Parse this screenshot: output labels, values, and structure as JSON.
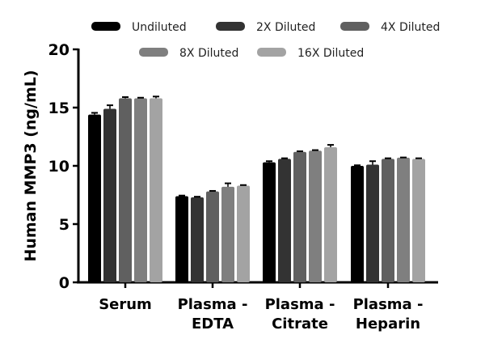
{
  "chart_data": {
    "type": "bar",
    "ylabel": "Human MMP3 (ng/mL)",
    "ylim": [
      0,
      20
    ],
    "yticks": [
      0,
      5,
      10,
      15,
      20
    ],
    "categories": [
      "Serum",
      "Plasma - EDTA",
      "Plasma - Citrate",
      "Plasma - Heparin"
    ],
    "category_lines": [
      [
        "Serum"
      ],
      [
        "Plasma -",
        "EDTA"
      ],
      [
        "Plasma -",
        "Citrate"
      ],
      [
        "Plasma -",
        "Heparin"
      ]
    ],
    "legend_position": "top",
    "grid": false,
    "series": [
      {
        "name": "Undiluted",
        "color": "#000000",
        "values": [
          14.4,
          7.4,
          10.3,
          10.0
        ],
        "errors": [
          0.15,
          0.05,
          0.1,
          0.05
        ]
      },
      {
        "name": "2X Diluted",
        "color": "#333333",
        "values": [
          14.9,
          7.3,
          10.6,
          10.1
        ],
        "errors": [
          0.3,
          0.05,
          0.05,
          0.3
        ]
      },
      {
        "name": "4X Diluted",
        "color": "#606060",
        "values": [
          15.8,
          7.8,
          11.2,
          10.6
        ],
        "errors": [
          0.1,
          0.05,
          0.05,
          0.05
        ]
      },
      {
        "name": "8X Diluted",
        "color": "#7f7f7f",
        "values": [
          15.8,
          8.2,
          11.3,
          10.7
        ],
        "errors": [
          0.05,
          0.3,
          0.05,
          0.02
        ]
      },
      {
        "name": "16X Diluted",
        "color": "#a3a3a3",
        "values": [
          15.8,
          8.3,
          11.6,
          10.6
        ],
        "errors": [
          0.15,
          0.05,
          0.2,
          0.05
        ]
      }
    ]
  }
}
